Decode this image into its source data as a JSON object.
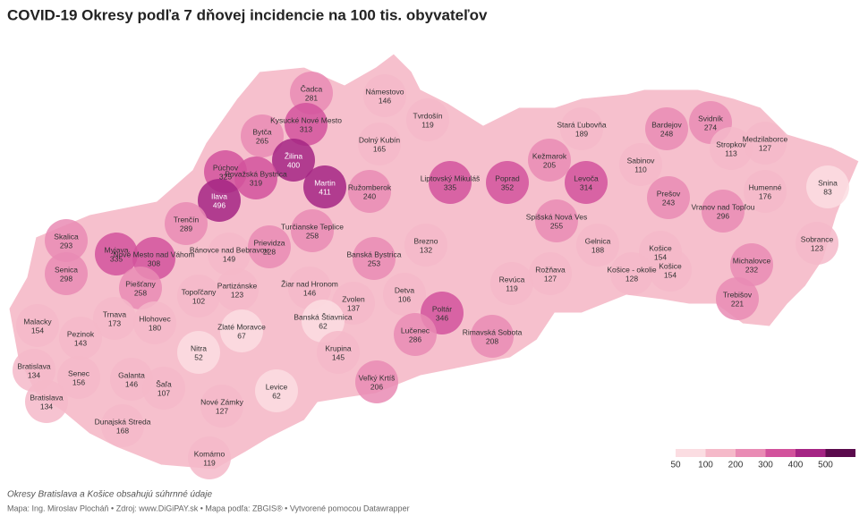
{
  "title": "COVID-19 Okresy podľa 7 dňovej incidencie na 100 tis. obyvateľov",
  "districts": [
    {
      "name": "Čadca",
      "value": 281
    },
    {
      "name": "Námestovo",
      "value": 146
    },
    {
      "name": "Tvrdošín",
      "value": 119
    },
    {
      "name": "Kysucké Nové Mesto",
      "value": 313
    },
    {
      "name": "Bytča",
      "value": 265
    },
    {
      "name": "Dolný Kubín",
      "value": 165
    },
    {
      "name": "Žilina",
      "value": 400
    },
    {
      "name": "Púchov",
      "value": 325
    },
    {
      "name": "Považská Bystrica",
      "value": 319
    },
    {
      "name": "Martin",
      "value": 411
    },
    {
      "name": "Ružomberok",
      "value": 240
    },
    {
      "name": "Ilava",
      "value": 496
    },
    {
      "name": "Liptovský Mikuláš",
      "value": 335
    },
    {
      "name": "Poprad",
      "value": 352
    },
    {
      "name": "Kežmarok",
      "value": 205
    },
    {
      "name": "Stará Ľubovňa",
      "value": 189
    },
    {
      "name": "Bardejov",
      "value": 248
    },
    {
      "name": "Svidník",
      "value": 274
    },
    {
      "name": "Stropkov",
      "value": 113
    },
    {
      "name": "Medzilaborce",
      "value": 127
    },
    {
      "name": "Sabinov",
      "value": 110
    },
    {
      "name": "Levoča",
      "value": 314
    },
    {
      "name": "Prešov",
      "value": 243
    },
    {
      "name": "Humenné",
      "value": 176
    },
    {
      "name": "Snina",
      "value": 83
    },
    {
      "name": "Vranov nad Topľou",
      "value": 296
    },
    {
      "name": "Trenčín",
      "value": 289
    },
    {
      "name": "Turčianske Teplice",
      "value": 258
    },
    {
      "name": "Spišská Nová Ves",
      "value": 255
    },
    {
      "name": "Skalica",
      "value": 293
    },
    {
      "name": "Myjava",
      "value": 335
    },
    {
      "name": "Nové Mesto nad Váhom",
      "value": 308
    },
    {
      "name": "Bánovce nad Bebravou",
      "value": 149
    },
    {
      "name": "Prievidza",
      "value": 228
    },
    {
      "name": "Brezno",
      "value": 132
    },
    {
      "name": "Banská Bystrica",
      "value": 253
    },
    {
      "name": "Gelnica",
      "value": 188
    },
    {
      "name": "Košice",
      "value": 154
    },
    {
      "name": "Košice",
      "value": 154
    },
    {
      "name": "Sobrance",
      "value": 123
    },
    {
      "name": "Michalovce",
      "value": 232
    },
    {
      "name": "Senica",
      "value": 298
    },
    {
      "name": "Piešťany",
      "value": 258
    },
    {
      "name": "Topoľčany",
      "value": 102
    },
    {
      "name": "Partizánske",
      "value": 123
    },
    {
      "name": "Žiar nad Hronom",
      "value": 146
    },
    {
      "name": "Rožňava",
      "value": 127
    },
    {
      "name": "Košice - okolie",
      "value": 128
    },
    {
      "name": "Revúca",
      "value": 119
    },
    {
      "name": "Zvolen",
      "value": 137
    },
    {
      "name": "Detva",
      "value": 106
    },
    {
      "name": "Trebišov",
      "value": 221
    },
    {
      "name": "Trnava",
      "value": 173
    },
    {
      "name": "Hlohovec",
      "value": 180
    },
    {
      "name": "Zlaté Moravce",
      "value": 67
    },
    {
      "name": "Banská Štiavnica",
      "value": 62
    },
    {
      "name": "Poltár",
      "value": 346
    },
    {
      "name": "Lučenec",
      "value": 286
    },
    {
      "name": "Rimavská Sobota",
      "value": 208
    },
    {
      "name": "Malacky",
      "value": 154
    },
    {
      "name": "Pezinok",
      "value": 143
    },
    {
      "name": "Krupina",
      "value": 145
    },
    {
      "name": "Nitra",
      "value": 52
    },
    {
      "name": "Bratislava",
      "value": 134
    },
    {
      "name": "Senec",
      "value": 156
    },
    {
      "name": "Galanta",
      "value": 146
    },
    {
      "name": "Šaľa",
      "value": 107
    },
    {
      "name": "Veľký Krtíš",
      "value": 206
    },
    {
      "name": "Levice",
      "value": 62
    },
    {
      "name": "Bratislava",
      "value": 134
    },
    {
      "name": "Nové Zámky",
      "value": 127
    },
    {
      "name": "Dunajská Streda",
      "value": 168
    },
    {
      "name": "Komárno",
      "value": 119
    }
  ],
  "legend": {
    "ticks": [
      50,
      100,
      200,
      300,
      400,
      500
    ],
    "colors": [
      "#fbdde2",
      "#f5b9c9",
      "#e98bb4",
      "#d2529c",
      "#a52484",
      "#5a0a4c"
    ]
  },
  "note": "Okresy Bratislava a Košice obsahujú súhrnné údaje",
  "source": "Mapa: Ing. Miroslav Plocháň • Zdroj: www.DiGiPAY.sk • Mapa podľa: ZBGIS® • Vytvorené pomocou Datawrapper"
}
